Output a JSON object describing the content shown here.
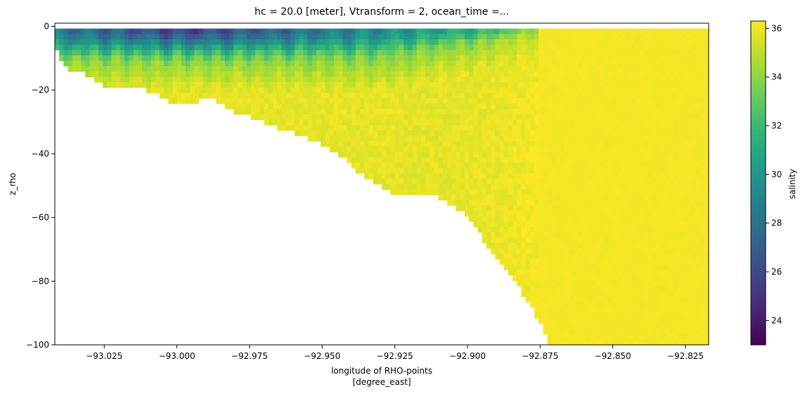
{
  "chart_data": {
    "type": "heatmap",
    "title": "hc = 20.0 [meter], Vtransform = 2, ocean_time =...",
    "xlabel_line1": "longitude of RHO-points",
    "xlabel_line2": "[degree_east]",
    "ylabel": "z_rho",
    "xlim": [
      -93.042,
      -92.817
    ],
    "ylim": [
      -100,
      1
    ],
    "xticks": [
      -93.025,
      -93.0,
      -92.975,
      -92.95,
      -92.925,
      -92.9,
      -92.875,
      -92.85,
      -92.825
    ],
    "xtick_labels": [
      "−93.025",
      "−93.000",
      "−92.975",
      "−92.950",
      "−92.925",
      "−92.900",
      "−92.875",
      "−92.850",
      "−92.825"
    ],
    "yticks": [
      0,
      -20,
      -40,
      -60,
      -80,
      -100
    ],
    "ytick_labels": [
      "0",
      "−20",
      "−40",
      "−60",
      "−80",
      "−100"
    ],
    "colorbar": {
      "label": "salinity",
      "range": [
        23,
        36.3
      ],
      "colormap": "viridis",
      "ticks": [
        24,
        26,
        28,
        30,
        32,
        34,
        36
      ],
      "tick_labels": [
        "24",
        "26",
        "28",
        "30",
        "32",
        "34",
        "36"
      ]
    },
    "bottom_depth_profile": {
      "lon": [
        -93.042,
        -93.041,
        -93.039,
        -93.036,
        -93.032,
        -93.028,
        -93.024,
        -93.018,
        -93.01,
        -93.004,
        -93.0,
        -92.995,
        -92.99,
        -92.987,
        -92.984,
        -92.981,
        -92.978,
        -92.97,
        -92.962,
        -92.955,
        -92.948,
        -92.942,
        -92.938,
        -92.932,
        -92.926,
        -92.92,
        -92.912,
        -92.905,
        -92.9,
        -92.896,
        -92.892,
        -92.888,
        -92.884,
        -92.88,
        -92.877,
        -92.874,
        -92.872,
        -92.871,
        -92.8705
      ],
      "depth": [
        -6,
        -9,
        -12,
        -14,
        -15,
        -17,
        -19,
        -19,
        -20,
        -23,
        -24,
        -24,
        -23,
        -23,
        -24,
        -27,
        -27,
        -30,
        -33,
        -35,
        -38,
        -42,
        -46,
        -49,
        -52,
        -53,
        -53,
        -56,
        -60,
        -65,
        -70,
        -75,
        -80,
        -85,
        -90,
        -95,
        -100,
        -100,
        -100
      ]
    },
    "salinity_summary": {
      "surface_fresh_layer_lon_range": [
        -93.042,
        -92.88
      ],
      "surface_fresh_layer_depth": -12,
      "min_salinity_near": {
        "lon": -92.997,
        "z": -3,
        "value": 25.5
      },
      "deep_salinity": 36.2
    }
  }
}
